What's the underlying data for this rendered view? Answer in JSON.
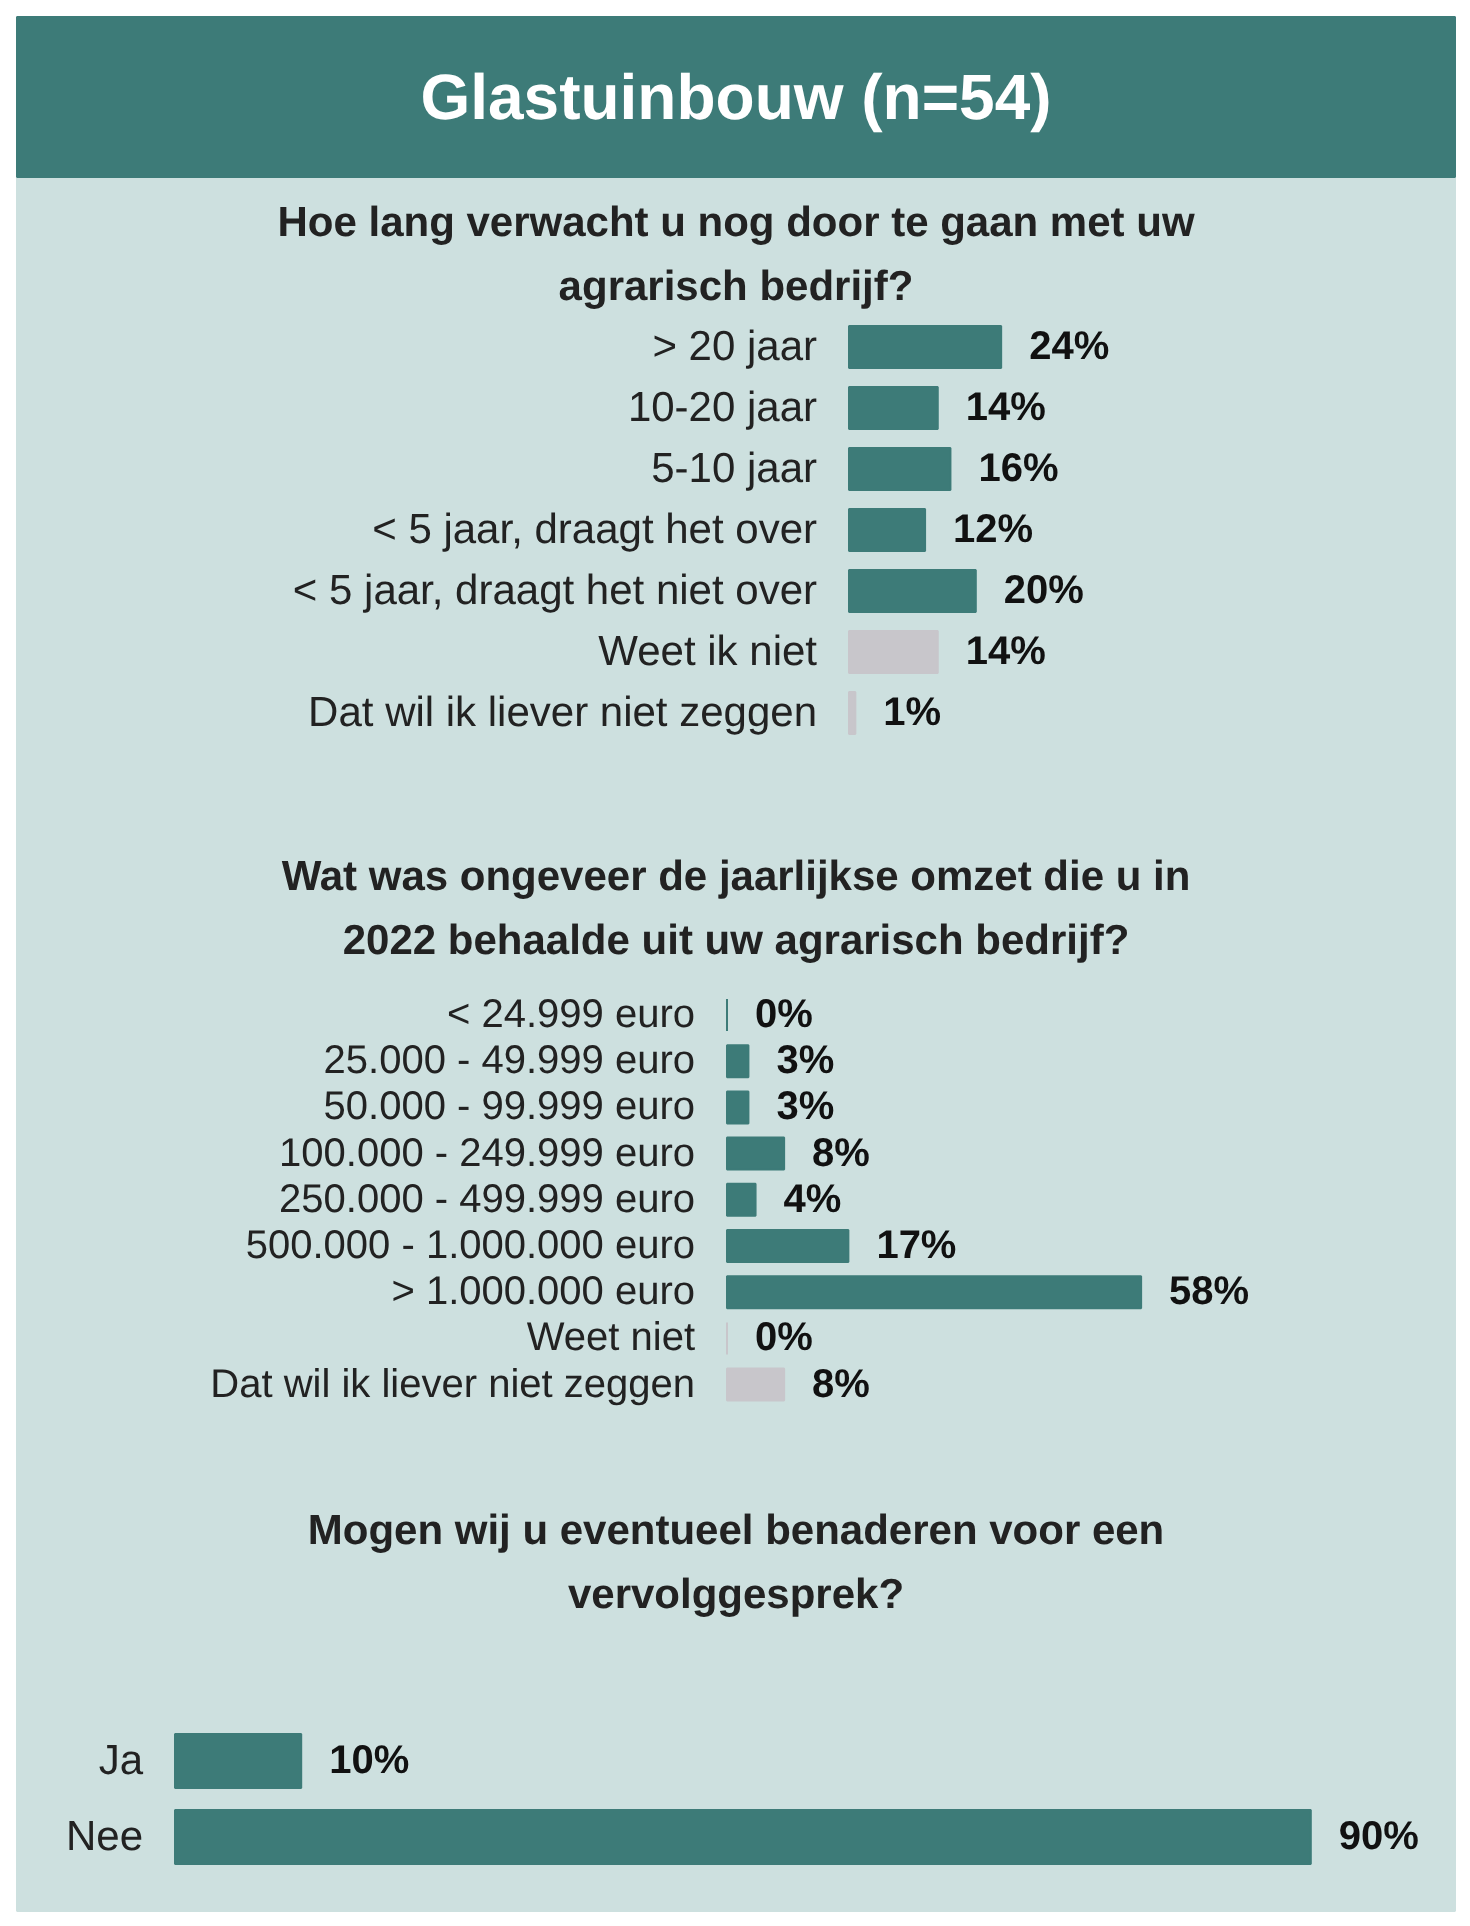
{
  "chart_data": [
    {
      "type": "bar",
      "orientation": "horizontal",
      "title": "Glastuinbouw (n=54)",
      "subtitle": "Hoe lang verwacht u nog door te gaan met uw\nagrarisch bedrijf?",
      "categories": [
        "> 20 jaar",
        "10-20 jaar",
        "5-10 jaar",
        "< 5 jaar, draagt het over",
        "< 5 jaar, draagt het niet over",
        "Weet ik niet",
        "Dat wil ik liever niet zeggen"
      ],
      "values": [
        24,
        14,
        16,
        12,
        20,
        14,
        1
      ],
      "value_labels": [
        "24%",
        "14%",
        "16%",
        "12%",
        "20%",
        "14%",
        "1%"
      ],
      "colors": [
        "#3d7b78",
        "#3d7b78",
        "#3d7b78",
        "#3d7b78",
        "#3d7b78",
        "#c8c6cb",
        "#c8c6cb"
      ],
      "tick_labels": "y"
    },
    {
      "type": "bar",
      "orientation": "horizontal",
      "title": "Wat was ongeveer de jaarlijkse omzet die u in\n2022 behaalde uit uw agrarisch bedrijf?",
      "categories": [
        "< 24.999 euro",
        "25.000 - 49.999 euro",
        "50.000 - 99.999 euro",
        "100.000 - 249.999 euro",
        "250.000 - 499.999 euro",
        "500.000 - 1.000.000 euro",
        "> 1.000.000 euro",
        "Weet niet",
        "Dat wil ik liever niet zeggen"
      ],
      "values": [
        0,
        3,
        3,
        8,
        4,
        17,
        58,
        0,
        8
      ],
      "value_labels": [
        "0%",
        "3%",
        "3%",
        "8%",
        "4%",
        "17%",
        "58%",
        "0%",
        "8%"
      ],
      "colors": [
        "#3d7b78",
        "#3d7b78",
        "#3d7b78",
        "#3d7b78",
        "#3d7b78",
        "#3d7b78",
        "#3d7b78",
        "#c8c6cb",
        "#c8c6cb"
      ],
      "tick_labels": "y"
    },
    {
      "type": "bar",
      "orientation": "horizontal",
      "title": "Mogen wij u eventueel benaderen voor een\nvervolggesprek?",
      "categories": [
        "Ja",
        "Nee"
      ],
      "values": [
        10,
        90
      ],
      "value_labels": [
        "10%",
        "90%"
      ],
      "colors": [
        "#3d7b78",
        "#3d7b78"
      ],
      "tick_labels": "y"
    }
  ]
}
